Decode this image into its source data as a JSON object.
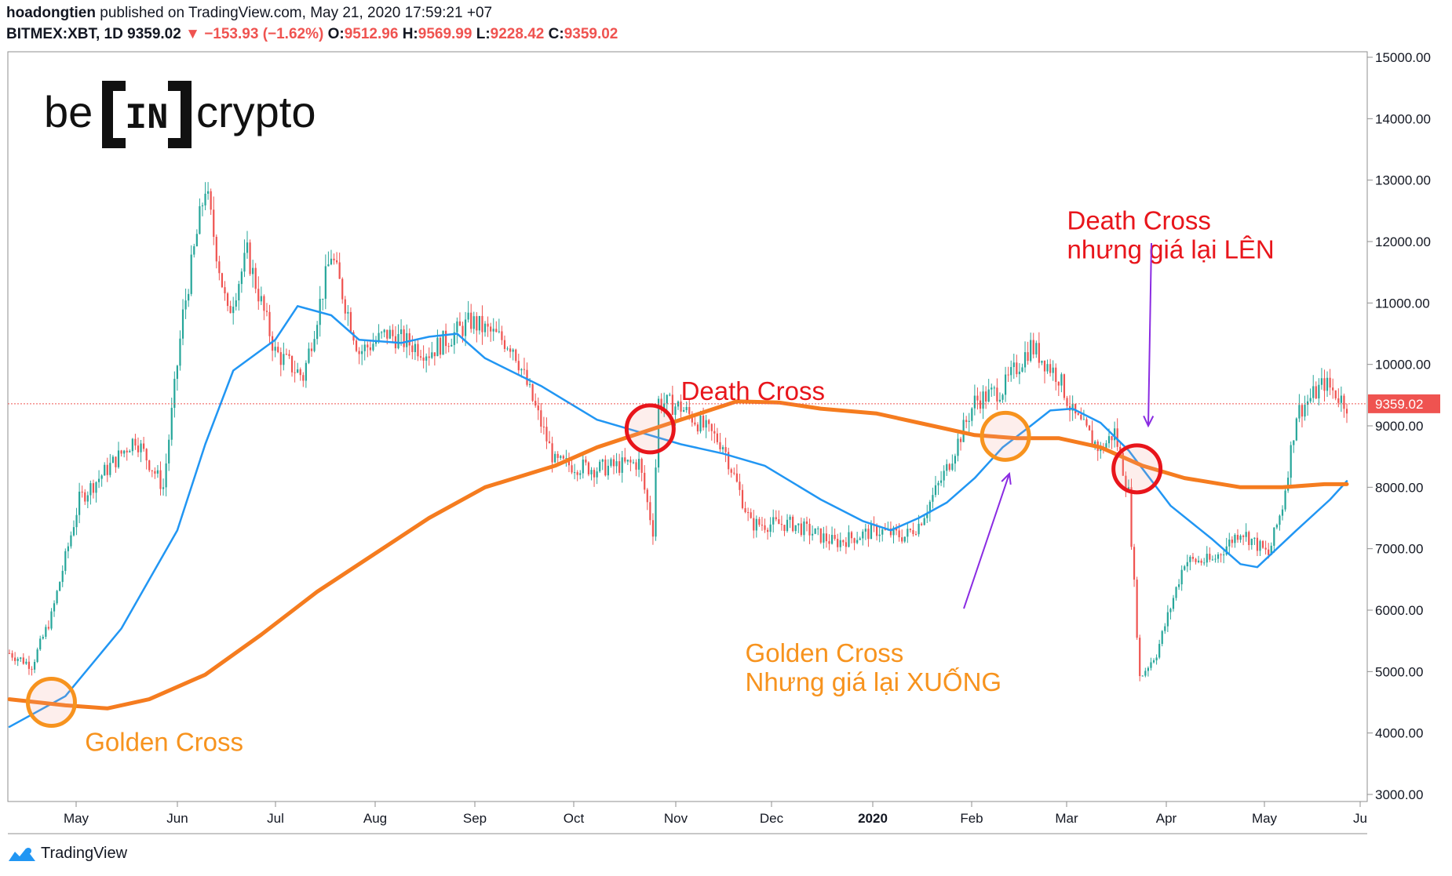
{
  "header": {
    "user": "hoadongtien",
    "published": "published on TradingView.com, May 21, 2020 17:59:21 +07",
    "symbol": "BITMEX:XBT, 1D",
    "last": "9359.02",
    "change": "−153.93 (−1.62%)",
    "o_label": "O:",
    "o_val": "9512.96",
    "h_label": "H:",
    "h_val": "9569.99",
    "l_label": "L:",
    "l_val": "9228.42",
    "c_label": "C:",
    "c_val": "9359.02"
  },
  "watermark": {
    "pre": "be",
    "mid": "IN",
    "post": "crypto"
  },
  "footer": {
    "brand": "TradingView",
    "icon": "tradingview-logo-icon"
  },
  "colors": {
    "up": "#26a69a",
    "down": "#ef5350",
    "ma50": "#2196f3",
    "ma200": "#f57c1f",
    "golden": "#f7931e",
    "death": "#e8151b",
    "arrow": "#8a2be2"
  },
  "chart_data": {
    "type": "candlestick",
    "symbol": "BITMEX:XBT",
    "interval": "1D",
    "ylim": [
      3000,
      15000
    ],
    "y_ticks": [
      "15000.00",
      "14000.00",
      "13000.00",
      "12000.00",
      "11000.00",
      "10000.00",
      "9000.00",
      "8000.00",
      "7000.00",
      "6000.00",
      "5000.00",
      "4000.00",
      "3000.00"
    ],
    "x_ticks": [
      "May",
      "Jun",
      "Jul",
      "Aug",
      "Sep",
      "Oct",
      "Nov",
      "Dec",
      "2020",
      "Feb",
      "Mar",
      "Apr",
      "May",
      "Ju"
    ],
    "last_price": 9359.02,
    "last_price_label": "9359.02",
    "price_path": [
      [
        0,
        5300
      ],
      [
        8,
        5100
      ],
      [
        15,
        5900
      ],
      [
        25,
        7800
      ],
      [
        35,
        8300
      ],
      [
        45,
        8800
      ],
      [
        55,
        8000
      ],
      [
        62,
        10800
      ],
      [
        70,
        12900
      ],
      [
        78,
        10800
      ],
      [
        85,
        11800
      ],
      [
        95,
        10200
      ],
      [
        105,
        9800
      ],
      [
        115,
        11800
      ],
      [
        125,
        10200
      ],
      [
        135,
        10500
      ],
      [
        150,
        10200
      ],
      [
        165,
        10700
      ],
      [
        180,
        10300
      ],
      [
        195,
        8400
      ],
      [
        210,
        8300
      ],
      [
        225,
        8400
      ],
      [
        230,
        7300
      ],
      [
        232,
        9400
      ],
      [
        240,
        9300
      ],
      [
        255,
        8700
      ],
      [
        265,
        7400
      ],
      [
        280,
        7400
      ],
      [
        295,
        7100
      ],
      [
        310,
        7300
      ],
      [
        320,
        7200
      ],
      [
        325,
        7400
      ],
      [
        335,
        8300
      ],
      [
        345,
        9400
      ],
      [
        355,
        9600
      ],
      [
        365,
        10300
      ],
      [
        375,
        9800
      ],
      [
        380,
        9200
      ],
      [
        390,
        8600
      ],
      [
        395,
        8900
      ],
      [
        400,
        7900
      ],
      [
        404,
        4900
      ],
      [
        410,
        5300
      ],
      [
        420,
        6800
      ],
      [
        430,
        6800
      ],
      [
        440,
        7300
      ],
      [
        450,
        6900
      ],
      [
        455,
        7700
      ],
      [
        460,
        9200
      ],
      [
        470,
        9700
      ],
      [
        478,
        9350
      ]
    ],
    "series": [
      {
        "name": "MA50",
        "values": [
          [
            0,
            4100
          ],
          [
            20,
            4600
          ],
          [
            40,
            5700
          ],
          [
            60,
            7300
          ],
          [
            70,
            8700
          ],
          [
            80,
            9900
          ],
          [
            95,
            10400
          ],
          [
            103,
            10950
          ],
          [
            115,
            10800
          ],
          [
            125,
            10400
          ],
          [
            140,
            10350
          ],
          [
            150,
            10450
          ],
          [
            160,
            10500
          ],
          [
            170,
            10100
          ],
          [
            190,
            9650
          ],
          [
            210,
            9100
          ],
          [
            225,
            8900
          ],
          [
            240,
            8700
          ],
          [
            255,
            8550
          ],
          [
            270,
            8350
          ],
          [
            290,
            7800
          ],
          [
            305,
            7450
          ],
          [
            315,
            7300
          ],
          [
            325,
            7500
          ],
          [
            335,
            7750
          ],
          [
            345,
            8150
          ],
          [
            355,
            8650
          ],
          [
            365,
            9000
          ],
          [
            372,
            9250
          ],
          [
            380,
            9280
          ],
          [
            390,
            9050
          ],
          [
            400,
            8600
          ],
          [
            415,
            7700
          ],
          [
            430,
            7150
          ],
          [
            440,
            6750
          ],
          [
            446,
            6700
          ],
          [
            460,
            7300
          ],
          [
            472,
            7800
          ],
          [
            478,
            8100
          ]
        ]
      },
      {
        "name": "MA200",
        "values": [
          [
            0,
            4550
          ],
          [
            20,
            4450
          ],
          [
            35,
            4400
          ],
          [
            50,
            4550
          ],
          [
            70,
            4950
          ],
          [
            90,
            5600
          ],
          [
            110,
            6300
          ],
          [
            130,
            6900
          ],
          [
            150,
            7500
          ],
          [
            170,
            8000
          ],
          [
            195,
            8350
          ],
          [
            210,
            8650
          ],
          [
            230,
            8950
          ],
          [
            250,
            9250
          ],
          [
            260,
            9400
          ],
          [
            275,
            9380
          ],
          [
            290,
            9280
          ],
          [
            310,
            9200
          ],
          [
            330,
            9000
          ],
          [
            345,
            8850
          ],
          [
            360,
            8800
          ],
          [
            375,
            8800
          ],
          [
            390,
            8650
          ],
          [
            405,
            8350
          ],
          [
            420,
            8150
          ],
          [
            440,
            8000
          ],
          [
            455,
            8000
          ],
          [
            470,
            8050
          ],
          [
            478,
            8050
          ]
        ]
      }
    ],
    "annotations": [
      {
        "text": "Golden Cross",
        "lines": [
          "Golden Cross"
        ],
        "type": "golden",
        "x": 15,
        "y": 4500,
        "label_x": 27,
        "label_y": 3710
      },
      {
        "text": "Death Cross",
        "lines": [
          "Death Cross"
        ],
        "type": "death",
        "x": 229,
        "y": 8950,
        "label_x": 240,
        "label_y": 9420
      },
      {
        "text": "Golden Cross Nhung gia lai XUONG",
        "lines": [
          "Golden Cross",
          "Nhưng giá lại XUỐNG"
        ],
        "type": "golden",
        "x": 356,
        "y": 8830,
        "label_x": 263,
        "label_y": 5160
      },
      {
        "text": "Death Cross nhung gia lai LEN",
        "lines": [
          "Death Cross",
          "nhưng giá lại LÊN"
        ],
        "type": "death",
        "x": 403,
        "y": 8300,
        "label_x": 378,
        "label_y": 12200
      }
    ]
  }
}
